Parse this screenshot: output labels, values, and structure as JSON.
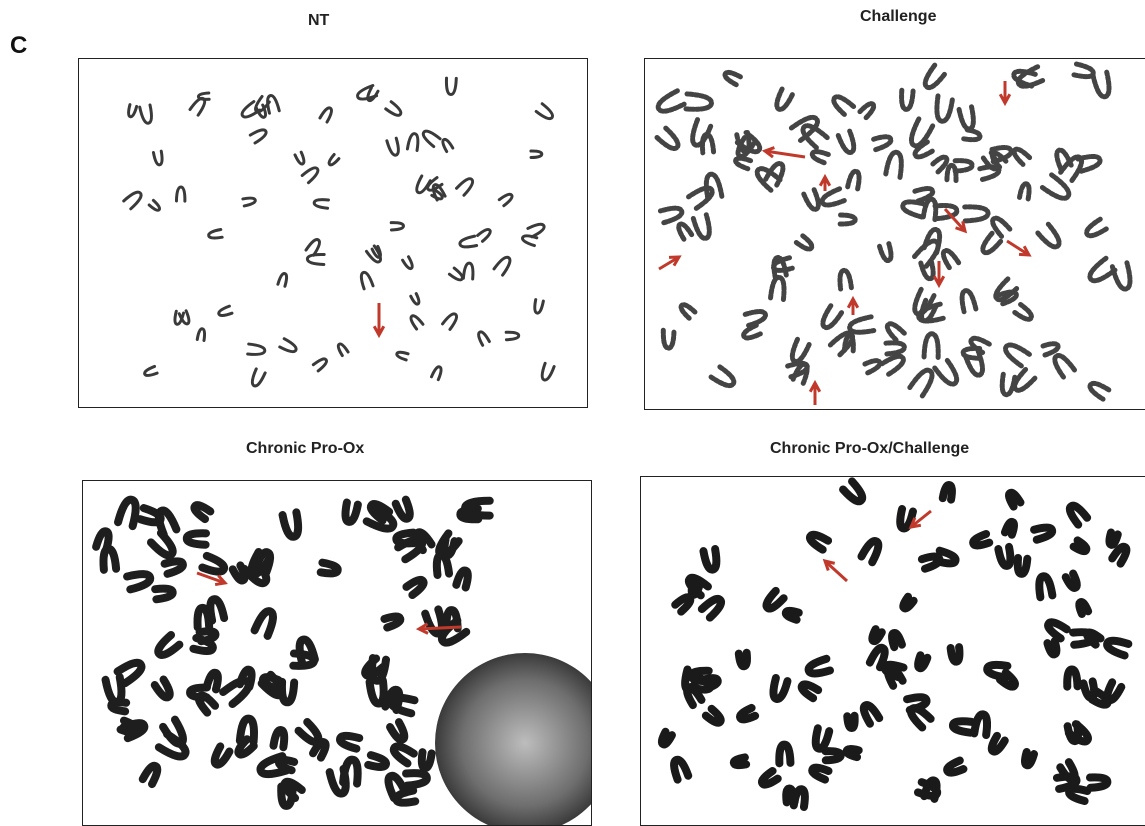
{
  "figure": {
    "panel_letter": "C",
    "panels": [
      {
        "id": "nt",
        "title": "NT",
        "arrow_color": "#c0392b",
        "chrom_color": "#3a3a3a"
      },
      {
        "id": "challenge",
        "title": "Challenge",
        "arrow_color": "#c0392b",
        "chrom_color": "#444444"
      },
      {
        "id": "chronic",
        "title": "Chronic Pro-Ox",
        "arrow_color": "#c0392b",
        "chrom_color": "#1e1e1e"
      },
      {
        "id": "chronic-challenge",
        "title": "Chronic Pro-Ox/Challenge",
        "arrow_color": "#c0392b",
        "chrom_color": "#1a1a1a"
      }
    ]
  }
}
